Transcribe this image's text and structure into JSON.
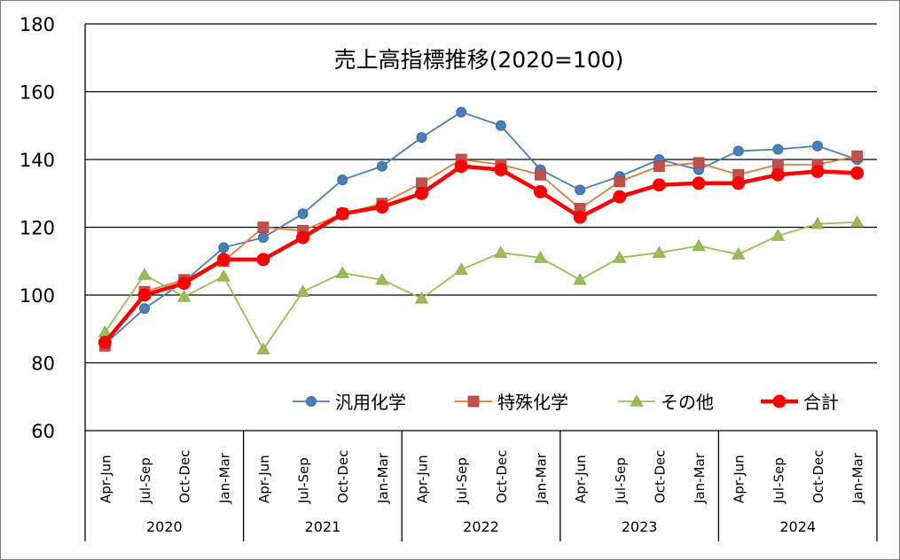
{
  "chart_data": {
    "type": "line",
    "title": "売上高指標推移(2020=100)",
    "ylim": [
      60,
      180
    ],
    "yticks": [
      "60",
      "80",
      "100",
      "120",
      "140",
      "160",
      "180"
    ],
    "grid": true,
    "legend_position": "lower-right inside plot",
    "quarters": [
      "Apr-Jun",
      "Jul-Sep",
      "Oct-Dec",
      "Jan-Mar",
      "Apr-Jun",
      "Jul-Sep",
      "Oct-Dec",
      "Jan-Mar",
      "Apr-Jun",
      "Jul-Sep",
      "Oct-Dec",
      "Jan-Mar",
      "Apr-Jun",
      "Jul-Sep",
      "Oct-Dec",
      "Jan-Mar",
      "Apr-Jun",
      "Jul-Sep",
      "Oct-Dec",
      "Jan-Mar"
    ],
    "years": [
      "2020",
      "2021",
      "2022",
      "2023",
      "2024"
    ],
    "series": [
      {
        "name": "汎用化学",
        "color": "#4a7ebb",
        "marker": "circle",
        "values": [
          85.5,
          96,
          104,
          114,
          117,
          124,
          134,
          138,
          146.5,
          154,
          150,
          137,
          131,
          135,
          140,
          137,
          142.5,
          143,
          144,
          140
        ]
      },
      {
        "name": "特殊化学",
        "color": "#e07b39",
        "marker": "square",
        "markerColor": "#c0504d",
        "values": [
          85,
          101,
          104.5,
          110,
          120,
          119,
          124,
          127,
          133,
          140,
          138.5,
          135.5,
          125.5,
          133.5,
          138,
          139,
          135.5,
          138.5,
          138.5,
          141
        ]
      },
      {
        "name": "その他",
        "color": "#9bbb59",
        "marker": "triangle",
        "values": [
          89,
          106,
          99.5,
          105.5,
          84,
          101,
          106.5,
          104.5,
          99,
          107.5,
          112.5,
          111,
          104.5,
          111,
          112.5,
          114.5,
          112,
          117.5,
          121,
          121.5
        ]
      },
      {
        "name": "合計",
        "color": "#ff0000",
        "marker": "circle-bold",
        "values": [
          86,
          100,
          103.5,
          110.5,
          110.5,
          117,
          124,
          126,
          130,
          138,
          137,
          130.5,
          123,
          129,
          132.5,
          133,
          133,
          135.5,
          136.5,
          136
        ]
      }
    ]
  }
}
